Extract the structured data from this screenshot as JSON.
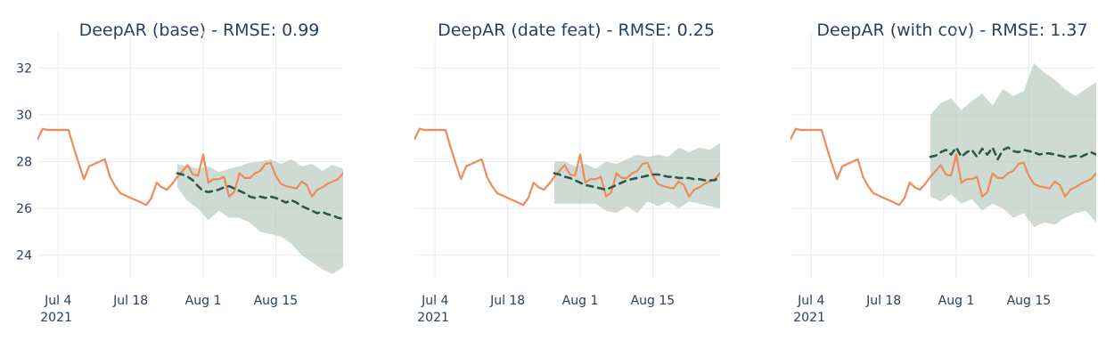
{
  "chart_data": [
    {
      "type": "line",
      "title": "DeepAR (base) - RMSE: 0.99",
      "xlabel": "",
      "ylabel": "",
      "xlim": [
        "2021-06-30",
        "2021-08-28"
      ],
      "ylim": [
        23,
        33
      ],
      "x_ticks": [
        {
          "date": "2021-07-04",
          "label": "Jul 4",
          "sublabel": "2021"
        },
        {
          "date": "2021-07-18",
          "label": "Jul 18"
        },
        {
          "date": "2021-08-01",
          "label": "Aug 1"
        },
        {
          "date": "2021-08-15",
          "label": "Aug 15"
        }
      ],
      "y_ticks": [
        24,
        26,
        28,
        30,
        32
      ],
      "show_y_tick_labels": true,
      "grid": true,
      "series": [
        {
          "role": "actual",
          "color": "#ef8a5a",
          "style": "solid",
          "x": [
            "2021-06-30",
            "2021-07-01",
            "2021-07-02",
            "2021-07-03",
            "2021-07-04",
            "2021-07-05",
            "2021-07-06",
            "2021-07-07",
            "2021-07-08",
            "2021-07-09",
            "2021-07-10",
            "2021-07-11",
            "2021-07-12",
            "2021-07-13",
            "2021-07-14",
            "2021-07-15",
            "2021-07-16",
            "2021-07-17",
            "2021-07-18",
            "2021-07-19",
            "2021-07-20",
            "2021-07-21",
            "2021-07-22",
            "2021-07-23",
            "2021-07-24",
            "2021-07-25",
            "2021-07-26",
            "2021-07-27",
            "2021-07-28",
            "2021-07-29",
            "2021-07-30",
            "2021-07-31",
            "2021-08-01",
            "2021-08-02",
            "2021-08-03",
            "2021-08-04",
            "2021-08-05",
            "2021-08-06",
            "2021-08-07",
            "2021-08-08",
            "2021-08-09",
            "2021-08-10",
            "2021-08-11",
            "2021-08-12",
            "2021-08-13",
            "2021-08-14",
            "2021-08-15",
            "2021-08-16",
            "2021-08-17",
            "2021-08-18",
            "2021-08-19",
            "2021-08-20",
            "2021-08-21",
            "2021-08-22",
            "2021-08-23",
            "2021-08-24",
            "2021-08-25",
            "2021-08-26",
            "2021-08-27",
            "2021-08-28"
          ],
          "y": [
            28.95,
            29.4,
            29.35,
            29.35,
            29.35,
            29.35,
            29.35,
            28.6,
            27.9,
            27.25,
            27.8,
            27.9,
            28.0,
            28.1,
            27.35,
            26.95,
            26.65,
            26.55,
            26.45,
            26.35,
            26.25,
            26.15,
            26.45,
            27.1,
            26.9,
            26.8,
            27.05,
            27.35,
            27.6,
            27.85,
            27.45,
            27.4,
            28.3,
            27.1,
            27.25,
            27.25,
            27.35,
            26.5,
            26.7,
            27.5,
            27.3,
            27.3,
            27.5,
            27.6,
            27.9,
            27.95,
            27.4,
            27.05,
            26.95,
            26.9,
            26.85,
            27.15,
            27.0,
            26.5,
            26.8,
            26.9,
            27.05,
            27.15,
            27.25,
            27.5
          ]
        },
        {
          "role": "forecast-median",
          "color": "#2f5748",
          "style": "dashed",
          "x": [
            "2021-07-27",
            "2021-07-28",
            "2021-07-29",
            "2021-07-30",
            "2021-07-31",
            "2021-08-01",
            "2021-08-02",
            "2021-08-03",
            "2021-08-04",
            "2021-08-05",
            "2021-08-06",
            "2021-08-07",
            "2021-08-08",
            "2021-08-09",
            "2021-08-10",
            "2021-08-11",
            "2021-08-12",
            "2021-08-13",
            "2021-08-14",
            "2021-08-15",
            "2021-08-16",
            "2021-08-17",
            "2021-08-18",
            "2021-08-19",
            "2021-08-20",
            "2021-08-21",
            "2021-08-22",
            "2021-08-23",
            "2021-08-24",
            "2021-08-25",
            "2021-08-26",
            "2021-08-27",
            "2021-08-28"
          ],
          "y": [
            27.5,
            27.45,
            27.35,
            27.2,
            26.95,
            26.75,
            26.7,
            26.75,
            26.8,
            26.9,
            26.95,
            26.85,
            26.75,
            26.65,
            26.5,
            26.45,
            26.5,
            26.45,
            26.5,
            26.45,
            26.35,
            26.25,
            26.35,
            26.25,
            26.1,
            26.0,
            25.9,
            25.8,
            25.85,
            25.75,
            25.7,
            25.6,
            25.55
          ]
        }
      ],
      "band": {
        "color": "#b8ccc0",
        "x": [
          "2021-07-27",
          "2021-07-29",
          "2021-07-31",
          "2021-08-02",
          "2021-08-04",
          "2021-08-06",
          "2021-08-08",
          "2021-08-10",
          "2021-08-12",
          "2021-08-14",
          "2021-08-16",
          "2021-08-18",
          "2021-08-20",
          "2021-08-22",
          "2021-08-24",
          "2021-08-26",
          "2021-08-28"
        ],
        "upper": [
          27.9,
          27.8,
          27.7,
          27.8,
          27.55,
          27.7,
          27.8,
          27.95,
          28.0,
          28.1,
          27.9,
          28.1,
          27.8,
          27.9,
          27.6,
          27.85,
          27.7
        ],
        "lower": [
          26.9,
          26.3,
          26.0,
          25.5,
          25.9,
          25.6,
          25.6,
          25.4,
          25.0,
          24.9,
          24.8,
          24.5,
          24.0,
          23.7,
          23.4,
          23.2,
          23.5
        ]
      }
    },
    {
      "type": "line",
      "title": "DeepAR (date feat) - RMSE: 0.25",
      "xlabel": "",
      "ylabel": "",
      "xlim": [
        "2021-06-30",
        "2021-08-28"
      ],
      "ylim": [
        23,
        33
      ],
      "x_ticks": [
        {
          "date": "2021-07-04",
          "label": "Jul 4",
          "sublabel": "2021"
        },
        {
          "date": "2021-07-18",
          "label": "Jul 18"
        },
        {
          "date": "2021-08-01",
          "label": "Aug 1"
        },
        {
          "date": "2021-08-15",
          "label": "Aug 15"
        }
      ],
      "y_ticks": [
        24,
        26,
        28,
        30,
        32
      ],
      "show_y_tick_labels": false,
      "grid": true,
      "series": [
        {
          "role": "actual",
          "color": "#ef8a5a",
          "style": "solid",
          "x": [
            "2021-06-30",
            "2021-07-01",
            "2021-07-02",
            "2021-07-03",
            "2021-07-04",
            "2021-07-05",
            "2021-07-06",
            "2021-07-07",
            "2021-07-08",
            "2021-07-09",
            "2021-07-10",
            "2021-07-11",
            "2021-07-12",
            "2021-07-13",
            "2021-07-14",
            "2021-07-15",
            "2021-07-16",
            "2021-07-17",
            "2021-07-18",
            "2021-07-19",
            "2021-07-20",
            "2021-07-21",
            "2021-07-22",
            "2021-07-23",
            "2021-07-24",
            "2021-07-25",
            "2021-07-26",
            "2021-07-27",
            "2021-07-28",
            "2021-07-29",
            "2021-07-30",
            "2021-07-31",
            "2021-08-01",
            "2021-08-02",
            "2021-08-03",
            "2021-08-04",
            "2021-08-05",
            "2021-08-06",
            "2021-08-07",
            "2021-08-08",
            "2021-08-09",
            "2021-08-10",
            "2021-08-11",
            "2021-08-12",
            "2021-08-13",
            "2021-08-14",
            "2021-08-15",
            "2021-08-16",
            "2021-08-17",
            "2021-08-18",
            "2021-08-19",
            "2021-08-20",
            "2021-08-21",
            "2021-08-22",
            "2021-08-23",
            "2021-08-24",
            "2021-08-25",
            "2021-08-26",
            "2021-08-27",
            "2021-08-28"
          ],
          "y": [
            28.95,
            29.4,
            29.35,
            29.35,
            29.35,
            29.35,
            29.35,
            28.6,
            27.9,
            27.25,
            27.8,
            27.9,
            28.0,
            28.1,
            27.35,
            26.95,
            26.65,
            26.55,
            26.45,
            26.35,
            26.25,
            26.15,
            26.45,
            27.1,
            26.9,
            26.8,
            27.05,
            27.35,
            27.6,
            27.85,
            27.45,
            27.4,
            28.3,
            27.1,
            27.25,
            27.25,
            27.35,
            26.5,
            26.7,
            27.5,
            27.3,
            27.3,
            27.5,
            27.6,
            27.9,
            27.95,
            27.4,
            27.05,
            26.95,
            26.9,
            26.85,
            27.15,
            27.0,
            26.5,
            26.8,
            26.9,
            27.05,
            27.15,
            27.25,
            27.5
          ]
        },
        {
          "role": "forecast-median",
          "color": "#2f5748",
          "style": "dashed",
          "x": [
            "2021-07-27",
            "2021-07-28",
            "2021-07-29",
            "2021-07-30",
            "2021-07-31",
            "2021-08-01",
            "2021-08-02",
            "2021-08-03",
            "2021-08-04",
            "2021-08-05",
            "2021-08-06",
            "2021-08-07",
            "2021-08-08",
            "2021-08-09",
            "2021-08-10",
            "2021-08-11",
            "2021-08-12",
            "2021-08-13",
            "2021-08-14",
            "2021-08-15",
            "2021-08-16",
            "2021-08-17",
            "2021-08-18",
            "2021-08-19",
            "2021-08-20",
            "2021-08-21",
            "2021-08-22",
            "2021-08-23",
            "2021-08-24",
            "2021-08-25",
            "2021-08-26",
            "2021-08-27",
            "2021-08-28"
          ],
          "y": [
            27.5,
            27.45,
            27.35,
            27.3,
            27.2,
            27.1,
            27.0,
            26.95,
            26.9,
            26.85,
            26.8,
            26.9,
            27.0,
            27.1,
            27.2,
            27.25,
            27.3,
            27.35,
            27.4,
            27.45,
            27.45,
            27.4,
            27.35,
            27.35,
            27.3,
            27.3,
            27.3,
            27.25,
            27.25,
            27.2,
            27.2,
            27.2,
            27.4
          ]
        }
      ],
      "band": {
        "color": "#b8ccc0",
        "x": [
          "2021-07-27",
          "2021-07-29",
          "2021-07-31",
          "2021-08-02",
          "2021-08-04",
          "2021-08-06",
          "2021-08-08",
          "2021-08-10",
          "2021-08-12",
          "2021-08-14",
          "2021-08-16",
          "2021-08-18",
          "2021-08-20",
          "2021-08-22",
          "2021-08-24",
          "2021-08-26",
          "2021-08-28"
        ],
        "upper": [
          28.0,
          28.0,
          27.8,
          27.9,
          27.7,
          28.0,
          27.9,
          28.1,
          28.3,
          28.2,
          28.3,
          28.2,
          28.6,
          28.4,
          28.6,
          28.5,
          28.8
        ],
        "lower": [
          26.2,
          26.2,
          26.2,
          26.2,
          26.2,
          25.9,
          25.8,
          26.1,
          25.8,
          26.3,
          26.1,
          26.3,
          26.0,
          26.3,
          26.2,
          26.1,
          26.0
        ]
      }
    },
    {
      "type": "line",
      "title": "DeepAR (with cov) - RMSE: 1.37",
      "xlabel": "",
      "ylabel": "",
      "xlim": [
        "2021-06-30",
        "2021-08-28"
      ],
      "ylim": [
        23,
        33
      ],
      "x_ticks": [
        {
          "date": "2021-07-04",
          "label": "Jul 4",
          "sublabel": "2021"
        },
        {
          "date": "2021-07-18",
          "label": "Jul 18"
        },
        {
          "date": "2021-08-01",
          "label": "Aug 1"
        },
        {
          "date": "2021-08-15",
          "label": "Aug 15"
        }
      ],
      "y_ticks": [
        24,
        26,
        28,
        30,
        32
      ],
      "show_y_tick_labels": false,
      "grid": true,
      "series": [
        {
          "role": "actual",
          "color": "#ef8a5a",
          "style": "solid",
          "x": [
            "2021-06-30",
            "2021-07-01",
            "2021-07-02",
            "2021-07-03",
            "2021-07-04",
            "2021-07-05",
            "2021-07-06",
            "2021-07-07",
            "2021-07-08",
            "2021-07-09",
            "2021-07-10",
            "2021-07-11",
            "2021-07-12",
            "2021-07-13",
            "2021-07-14",
            "2021-07-15",
            "2021-07-16",
            "2021-07-17",
            "2021-07-18",
            "2021-07-19",
            "2021-07-20",
            "2021-07-21",
            "2021-07-22",
            "2021-07-23",
            "2021-07-24",
            "2021-07-25",
            "2021-07-26",
            "2021-07-27",
            "2021-07-28",
            "2021-07-29",
            "2021-07-30",
            "2021-07-31",
            "2021-08-01",
            "2021-08-02",
            "2021-08-03",
            "2021-08-04",
            "2021-08-05",
            "2021-08-06",
            "2021-08-07",
            "2021-08-08",
            "2021-08-09",
            "2021-08-10",
            "2021-08-11",
            "2021-08-12",
            "2021-08-13",
            "2021-08-14",
            "2021-08-15",
            "2021-08-16",
            "2021-08-17",
            "2021-08-18",
            "2021-08-19",
            "2021-08-20",
            "2021-08-21",
            "2021-08-22",
            "2021-08-23",
            "2021-08-24",
            "2021-08-25",
            "2021-08-26",
            "2021-08-27",
            "2021-08-28"
          ],
          "y": [
            28.95,
            29.4,
            29.35,
            29.35,
            29.35,
            29.35,
            29.35,
            28.6,
            27.9,
            27.25,
            27.8,
            27.9,
            28.0,
            28.1,
            27.35,
            26.95,
            26.65,
            26.55,
            26.45,
            26.35,
            26.25,
            26.15,
            26.45,
            27.1,
            26.9,
            26.8,
            27.05,
            27.35,
            27.6,
            27.85,
            27.45,
            27.4,
            28.3,
            27.1,
            27.25,
            27.25,
            27.35,
            26.5,
            26.7,
            27.5,
            27.3,
            27.3,
            27.5,
            27.6,
            27.9,
            27.95,
            27.4,
            27.05,
            26.95,
            26.9,
            26.85,
            27.15,
            27.0,
            26.5,
            26.8,
            26.9,
            27.05,
            27.15,
            27.25,
            27.5
          ]
        },
        {
          "role": "forecast-median",
          "color": "#2f5748",
          "style": "dashed",
          "x": [
            "2021-07-27",
            "2021-07-28",
            "2021-07-29",
            "2021-07-30",
            "2021-07-31",
            "2021-08-01",
            "2021-08-02",
            "2021-08-03",
            "2021-08-04",
            "2021-08-05",
            "2021-08-06",
            "2021-08-07",
            "2021-08-08",
            "2021-08-09",
            "2021-08-10",
            "2021-08-11",
            "2021-08-12",
            "2021-08-13",
            "2021-08-14",
            "2021-08-15",
            "2021-08-16",
            "2021-08-17",
            "2021-08-18",
            "2021-08-19",
            "2021-08-20",
            "2021-08-21",
            "2021-08-22",
            "2021-08-23",
            "2021-08-24",
            "2021-08-25",
            "2021-08-26",
            "2021-08-27",
            "2021-08-28"
          ],
          "y": [
            28.2,
            28.25,
            28.4,
            28.5,
            28.3,
            28.6,
            28.2,
            28.4,
            28.5,
            28.2,
            28.55,
            28.3,
            28.6,
            28.1,
            28.5,
            28.6,
            28.45,
            28.4,
            28.5,
            28.45,
            28.4,
            28.3,
            28.35,
            28.35,
            28.3,
            28.25,
            28.2,
            28.2,
            28.25,
            28.2,
            28.3,
            28.4,
            28.3
          ]
        }
      ],
      "band": {
        "color": "#b8ccc0",
        "x": [
          "2021-07-27",
          "2021-07-29",
          "2021-07-31",
          "2021-08-02",
          "2021-08-04",
          "2021-08-06",
          "2021-08-08",
          "2021-08-10",
          "2021-08-12",
          "2021-08-14",
          "2021-08-16",
          "2021-08-18",
          "2021-08-20",
          "2021-08-22",
          "2021-08-24",
          "2021-08-26",
          "2021-08-28"
        ],
        "upper": [
          30.0,
          30.5,
          30.7,
          30.2,
          30.6,
          30.9,
          30.4,
          31.1,
          30.8,
          31.0,
          32.2,
          31.8,
          31.5,
          31.1,
          30.8,
          31.1,
          31.4
        ],
        "lower": [
          26.5,
          26.3,
          26.6,
          26.2,
          26.4,
          25.9,
          26.2,
          26.0,
          25.6,
          25.8,
          25.2,
          25.4,
          25.3,
          25.6,
          25.8,
          25.9,
          25.4
        ]
      }
    }
  ]
}
